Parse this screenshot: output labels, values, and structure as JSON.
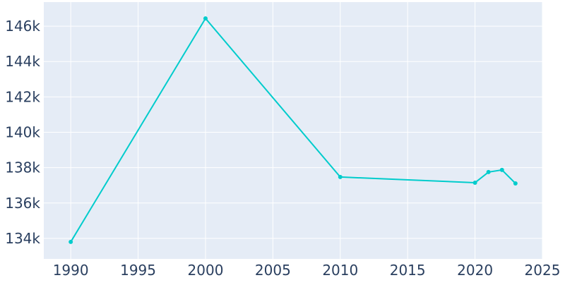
{
  "chart_data": {
    "type": "line",
    "title": "",
    "xlabel": "",
    "ylabel": "",
    "x": [
      1990,
      2000,
      2010,
      2020,
      2021,
      2022,
      2023
    ],
    "series": [
      {
        "values": [
          133800,
          146440,
          137470,
          137150,
          137750,
          137870,
          137110
        ]
      }
    ],
    "xlim": [
      1988,
      2025
    ],
    "ylim": [
      132840,
      147360
    ],
    "xticks": [
      1990,
      1995,
      2000,
      2005,
      2010,
      2015,
      2020,
      2025
    ],
    "xtick_labels": [
      "1990",
      "1995",
      "2000",
      "2005",
      "2010",
      "2015",
      "2020",
      "2025"
    ],
    "yticks": [
      134000,
      136000,
      138000,
      140000,
      142000,
      144000,
      146000
    ],
    "ytick_labels": [
      "134k",
      "136k",
      "138k",
      "140k",
      "142k",
      "144k",
      "146k"
    ],
    "grid": true,
    "colors": {
      "line": "#00cccc",
      "plot_bg": "#e5ecf6",
      "grid": "#ffffff"
    }
  }
}
